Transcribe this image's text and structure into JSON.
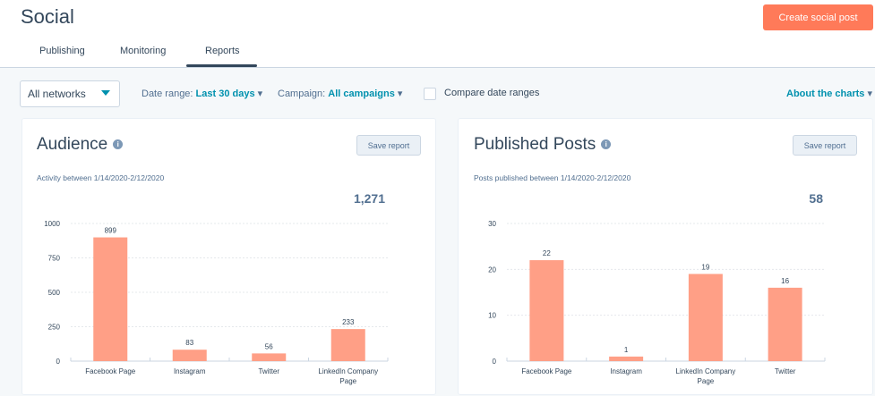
{
  "header": {
    "title": "Social",
    "create_label": "Create social post"
  },
  "tabs": [
    {
      "label": "Publishing"
    },
    {
      "label": "Monitoring"
    },
    {
      "label": "Reports"
    }
  ],
  "filters": {
    "networks": "All networks",
    "date_label": "Date range:",
    "date_value": "Last 30 days",
    "campaign_label": "Campaign:",
    "campaign_value": "All campaigns",
    "compare_label": "Compare date ranges",
    "about": "About the charts"
  },
  "colors": {
    "bar": "#ff9f86",
    "accent": "#ff7a59",
    "link": "#0091ae"
  },
  "cards": [
    {
      "title": "Audience",
      "save": "Save report",
      "subtitle": "Activity between 1/14/2020-2/12/2020",
      "total": "1,271"
    },
    {
      "title": "Published Posts",
      "save": "Save report",
      "subtitle": "Posts published between 1/14/2020-2/12/2020",
      "total": "58"
    }
  ],
  "chart_data": [
    {
      "type": "bar",
      "title": "Audience",
      "categories": [
        "Facebook Page",
        "Instagram",
        "Twitter",
        "LinkedIn Company Page"
      ],
      "values": [
        899,
        83,
        56,
        233
      ],
      "ylim": [
        0,
        1000
      ],
      "yticks": [
        0,
        250,
        500,
        750,
        1000
      ],
      "grid": true
    },
    {
      "type": "bar",
      "title": "Published Posts",
      "categories": [
        "Facebook Page",
        "Instagram",
        "LinkedIn Company Page",
        "Twitter"
      ],
      "values": [
        22,
        1,
        19,
        16
      ],
      "ylim": [
        0,
        30
      ],
      "yticks": [
        0,
        10,
        20,
        30
      ],
      "grid": true
    }
  ]
}
